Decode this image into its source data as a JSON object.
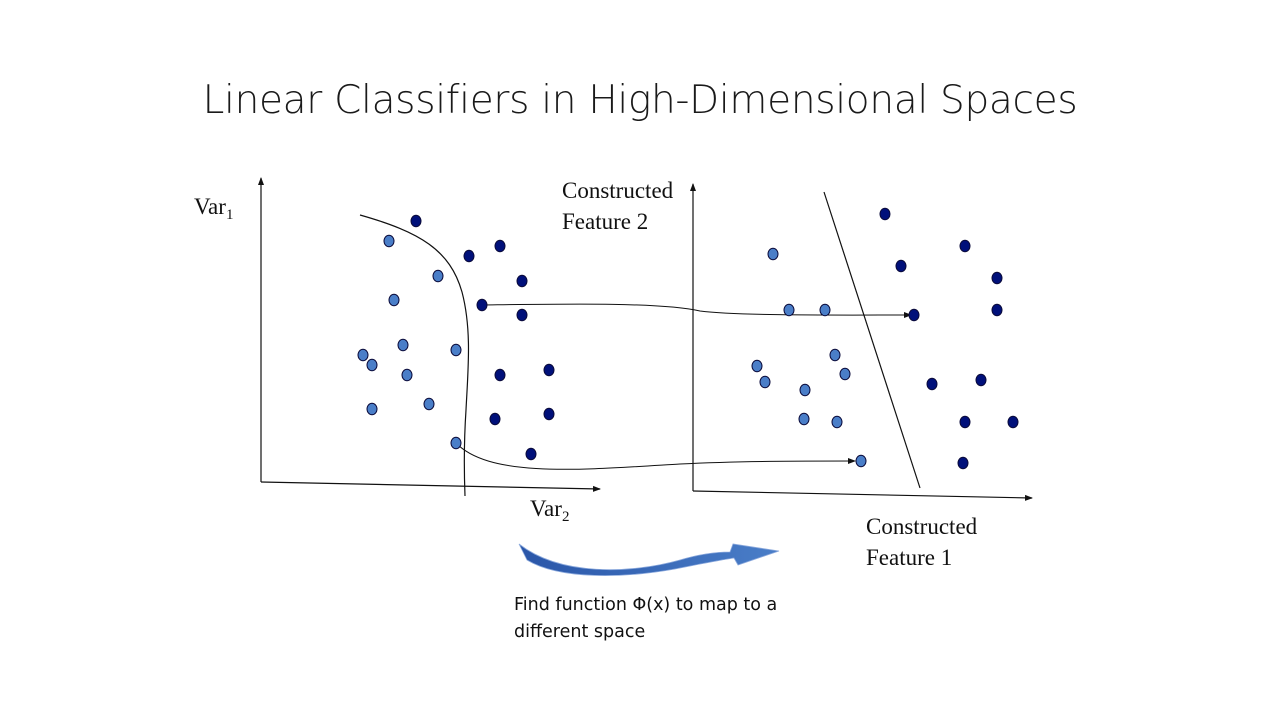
{
  "title": "Linear Classifiers in High-Dimensional Spaces",
  "left_plot": {
    "y_axis_label": "Var",
    "y_axis_subscript": "1",
    "x_axis_label": "Var",
    "x_axis_subscript": "2"
  },
  "right_plot": {
    "y_axis_label_line1": "Constructed",
    "y_axis_label_line2": "Feature 2",
    "x_axis_label_line1": "Constructed",
    "x_axis_label_line2": "Feature 1"
  },
  "caption_line1": "Find function Φ(x) to map to a",
  "caption_line2": "different space",
  "colors": {
    "light_point": "#4a7ec8",
    "dark_point": "#00107a",
    "point_outline": "#0a0a3a",
    "line": "#111111",
    "arrow_fill": "#2e5fb0",
    "arrow_edge": "#8aa8dc"
  }
}
